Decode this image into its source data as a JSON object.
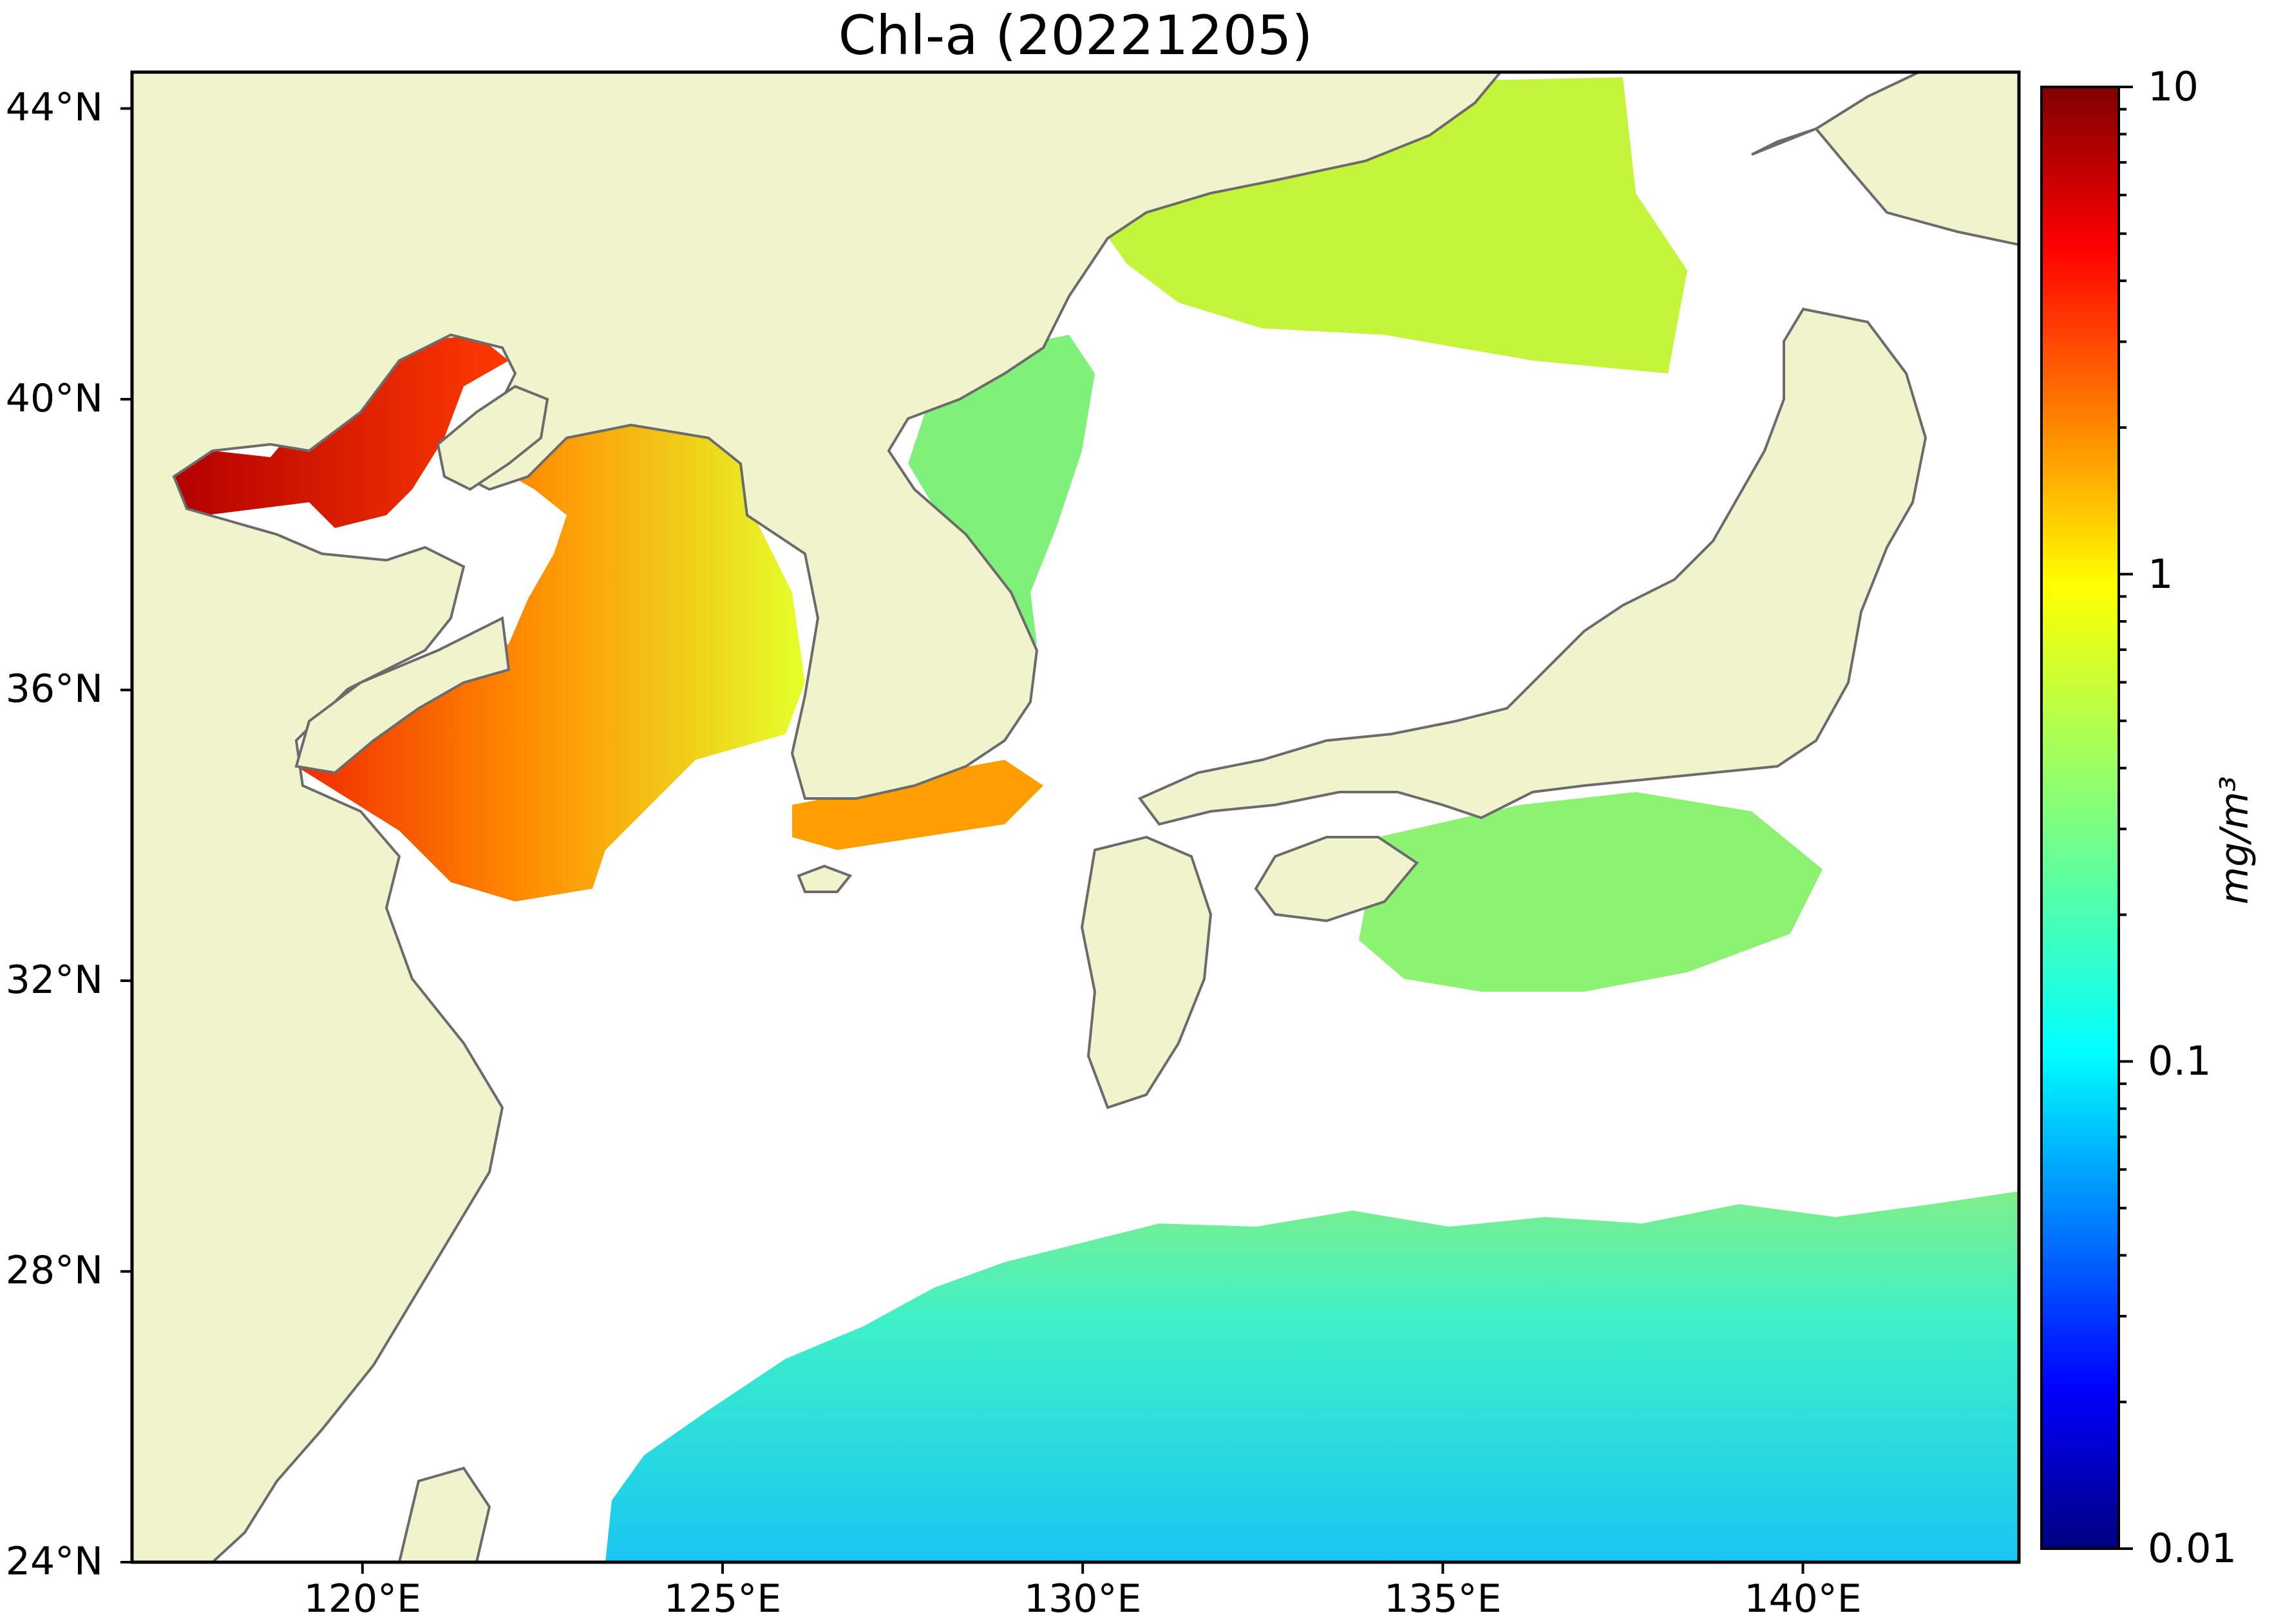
{
  "title": "Chl-a (20221205)",
  "map": {
    "projection": "PlateCarree",
    "lon_range": [
      116.8,
      143.0
    ],
    "lat_range": [
      24.0,
      44.5
    ],
    "land_color": "#f0f3cc",
    "coast_color": "#6b6b6b",
    "no_data_color": "#ffffff",
    "lat_ticks": [
      {
        "value": 44,
        "label": "44°N"
      },
      {
        "value": 40,
        "label": "40°N"
      },
      {
        "value": 36,
        "label": "36°N"
      },
      {
        "value": 32,
        "label": "32°N"
      },
      {
        "value": 28,
        "label": "28°N"
      },
      {
        "value": 24,
        "label": "24°N"
      }
    ],
    "lon_ticks": [
      {
        "value": 120,
        "label": "120°E"
      },
      {
        "value": 125,
        "label": "125°E"
      },
      {
        "value": 130,
        "label": "130°E"
      },
      {
        "value": 135,
        "label": "135°E"
      },
      {
        "value": 140,
        "label": "140°E"
      }
    ]
  },
  "colorbar": {
    "colormap": "jet",
    "scale": "log",
    "range": [
      0.01,
      10
    ],
    "unit": "mg/m³",
    "ticks": [
      {
        "value": 10,
        "label": "10"
      },
      {
        "value": 1,
        "label": "1"
      },
      {
        "value": 0.1,
        "label": "0.1"
      },
      {
        "value": 0.01,
        "label": "0.01"
      }
    ]
  }
}
